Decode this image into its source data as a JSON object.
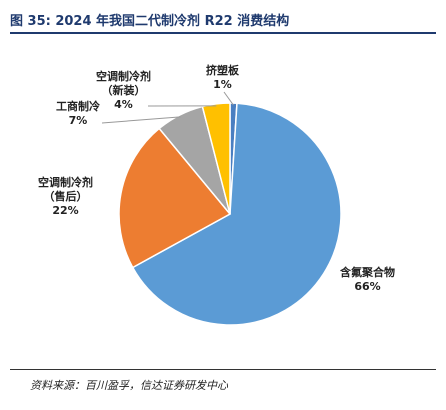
{
  "figure": {
    "title": "图 35:  2024 年我国二代制冷剂 R22 消费结构",
    "source": "资料来源：百川盈孚，信达证券研发中心"
  },
  "chart_data": {
    "type": "pie",
    "title": "",
    "start_angle_deg": 90,
    "direction": "clockwise",
    "slices": [
      {
        "name": "挤塑板",
        "name_lines": [
          "挤塑板"
        ],
        "value": 1,
        "value_label": "1%",
        "color": "#4a7fc1"
      },
      {
        "name": "含氟聚合物",
        "name_lines": [
          "含氟聚合物"
        ],
        "value": 66,
        "value_label": "66%",
        "color": "#5b9bd5"
      },
      {
        "name": "空调制冷剂（售后）",
        "name_lines": [
          "空调制冷剂",
          "（售后）"
        ],
        "value": 22,
        "value_label": "22%",
        "color": "#ed7d31"
      },
      {
        "name": "工商制冷",
        "name_lines": [
          "工商制冷"
        ],
        "value": 7,
        "value_label": "7%",
        "color": "#a5a5a5"
      },
      {
        "name": "空调制冷剂（新装）",
        "name_lines": [
          "空调制冷剂",
          "（新装）"
        ],
        "value": 4,
        "value_label": "4%",
        "color": "#ffc000"
      }
    ]
  }
}
